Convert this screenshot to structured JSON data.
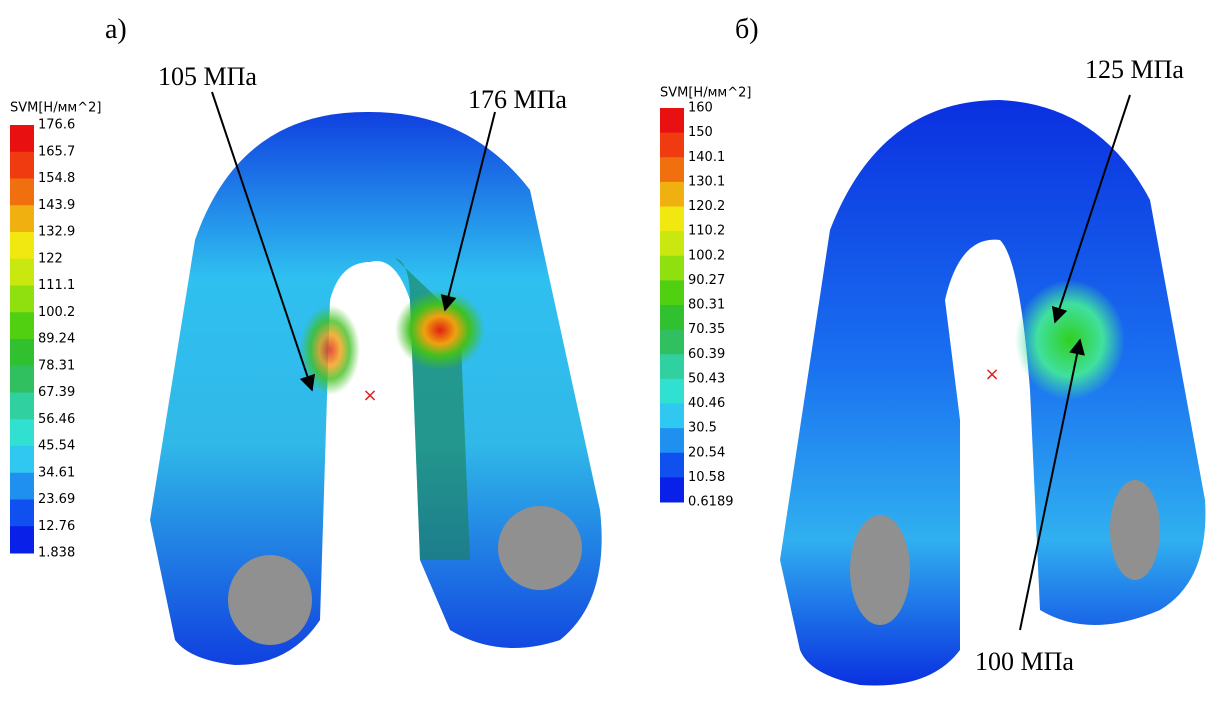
{
  "panel_a": {
    "label": "а)",
    "legend": {
      "title": "SVM[Н/мм^2]",
      "labels": [
        "176.6",
        "165.7",
        "154.8",
        "143.9",
        "132.9",
        "122",
        "111.1",
        "100.2",
        "89.24",
        "78.31",
        "67.39",
        "56.46",
        "45.54",
        "34.61",
        "23.69",
        "12.76",
        "1.838"
      ]
    },
    "annotations": [
      "105 МПа",
      "176 МПа"
    ]
  },
  "panel_b": {
    "label": "б)",
    "legend": {
      "title": "SVM[Н/мм^2]",
      "labels": [
        "160",
        "150",
        "140.1",
        "130.1",
        "120.2",
        "110.2",
        "100.2",
        "90.27",
        "80.31",
        "70.35",
        "60.39",
        "50.43",
        "40.46",
        "30.5",
        "20.54",
        "10.58",
        "0.6189"
      ]
    },
    "annotations": [
      "125 МПа",
      "100 МПа"
    ]
  }
}
